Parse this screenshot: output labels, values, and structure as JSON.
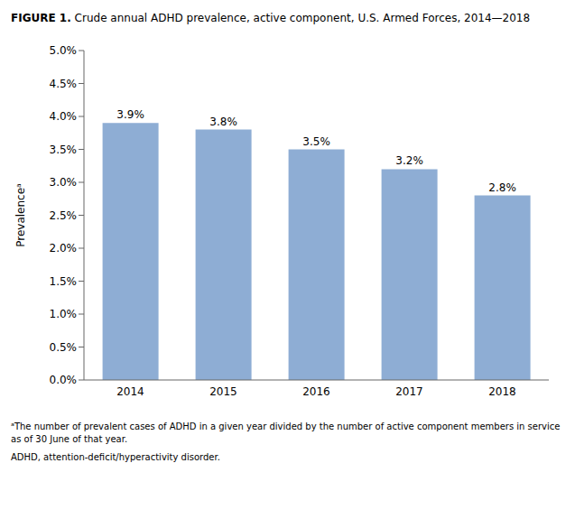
{
  "chart_data": {
    "type": "bar",
    "title": "FIGURE 1. Crude annual ADHD prevalence, active component, U.S. Armed Forces, 2014—2018",
    "categories": [
      "2014",
      "2015",
      "2016",
      "2017",
      "2018"
    ],
    "values": [
      3.9,
      3.8,
      3.5,
      3.2,
      2.8
    ],
    "value_labels": [
      "3.9%",
      "3.8%",
      "3.5%",
      "3.2%",
      "2.8%"
    ],
    "data_labels": true,
    "color": "#8eadd4",
    "ylabel": "Prevalenceᵃ",
    "ylim": [
      0,
      5.0
    ],
    "yticks": [
      {
        "value": 0.0,
        "label": "0.0%"
      },
      {
        "value": 0.5,
        "label": "0.5%"
      },
      {
        "value": 1.0,
        "label": "1.0%"
      },
      {
        "value": 1.5,
        "label": "1.5%"
      },
      {
        "value": 2.0,
        "label": "2.0%"
      },
      {
        "value": 2.5,
        "label": "2.5%"
      },
      {
        "value": 3.0,
        "label": "3.0%"
      },
      {
        "value": 3.5,
        "label": "3.5%"
      },
      {
        "value": 4.0,
        "label": "4.0%"
      },
      {
        "value": 4.5,
        "label": "4.5%"
      },
      {
        "value": 5.0,
        "label": "5.0%"
      }
    ],
    "grid": false,
    "annotations": [
      "ᵃThe number of prevalent cases of ADHD in a given year divided by the number of active component members in service as of 30 June of that year.",
      "ADHD, attention-deficit/hyperactivity disorder."
    ]
  }
}
